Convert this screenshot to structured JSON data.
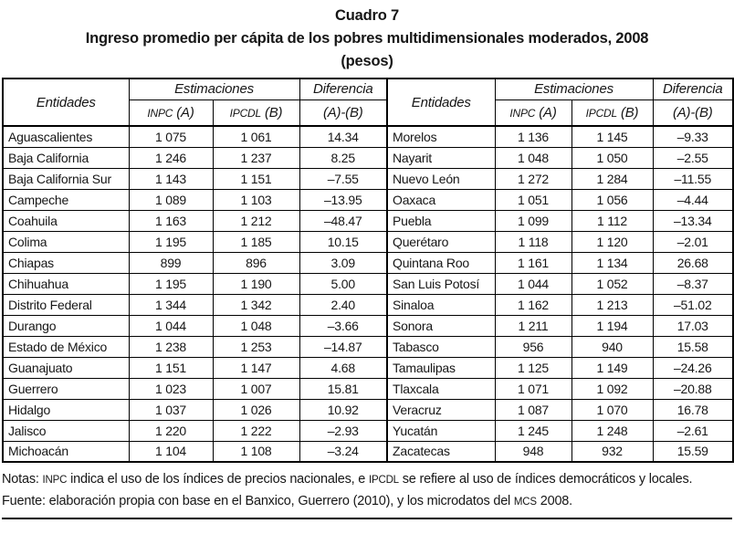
{
  "title": "Cuadro 7",
  "subtitle": "Ingreso promedio per cápita de los pobres multidimensionales moderados, 2008",
  "units": "(pesos)",
  "table": {
    "header": {
      "entidades": "Entidades",
      "estimaciones": "Estimaciones",
      "diferencia": "Diferencia",
      "inpc_abbr": "INPC",
      "inpc_suffix": "(A)",
      "ipcdl_abbr": "IPCDL",
      "ipcdl_suffix": "(B)",
      "dif_formula": "(A)-(B)"
    },
    "rows_left": [
      {
        "name": "Aguascalientes",
        "inpc": "1 075",
        "ipcdl": "1 061",
        "dif": "14.34"
      },
      {
        "name": "Baja California",
        "inpc": "1 246",
        "ipcdl": "1 237",
        "dif": "8.25"
      },
      {
        "name": "Baja California Sur",
        "inpc": "1 143",
        "ipcdl": "1 151",
        "dif": "–7.55"
      },
      {
        "name": "Campeche",
        "inpc": "1 089",
        "ipcdl": "1 103",
        "dif": "–13.95"
      },
      {
        "name": "Coahuila",
        "inpc": "1 163",
        "ipcdl": "1 212",
        "dif": "–48.47"
      },
      {
        "name": "Colima",
        "inpc": "1 195",
        "ipcdl": "1 185",
        "dif": "10.15"
      },
      {
        "name": "Chiapas",
        "inpc": "899",
        "ipcdl": "896",
        "dif": "3.09"
      },
      {
        "name": "Chihuahua",
        "inpc": "1 195",
        "ipcdl": "1 190",
        "dif": "5.00"
      },
      {
        "name": "Distrito Federal",
        "inpc": "1 344",
        "ipcdl": "1 342",
        "dif": "2.40"
      },
      {
        "name": "Durango",
        "inpc": "1 044",
        "ipcdl": "1 048",
        "dif": "–3.66"
      },
      {
        "name": "Estado de México",
        "inpc": "1 238",
        "ipcdl": "1 253",
        "dif": "–14.87"
      },
      {
        "name": "Guanajuato",
        "inpc": "1 151",
        "ipcdl": "1 147",
        "dif": "4.68"
      },
      {
        "name": "Guerrero",
        "inpc": "1 023",
        "ipcdl": "1 007",
        "dif": "15.81"
      },
      {
        "name": "Hidalgo",
        "inpc": "1 037",
        "ipcdl": "1 026",
        "dif": "10.92"
      },
      {
        "name": "Jalisco",
        "inpc": "1 220",
        "ipcdl": "1 222",
        "dif": "–2.93"
      },
      {
        "name": "Michoacán",
        "inpc": "1 104",
        "ipcdl": "1 108",
        "dif": "–3.24"
      }
    ],
    "rows_right": [
      {
        "name": "Morelos",
        "inpc": "1 136",
        "ipcdl": "1 145",
        "dif": "–9.33"
      },
      {
        "name": "Nayarit",
        "inpc": "1 048",
        "ipcdl": "1 050",
        "dif": "–2.55"
      },
      {
        "name": "Nuevo León",
        "inpc": "1 272",
        "ipcdl": "1 284",
        "dif": "–11.55"
      },
      {
        "name": "Oaxaca",
        "inpc": "1 051",
        "ipcdl": "1 056",
        "dif": "–4.44"
      },
      {
        "name": "Puebla",
        "inpc": "1 099",
        "ipcdl": "1 112",
        "dif": "–13.34"
      },
      {
        "name": "Querétaro",
        "inpc": "1 118",
        "ipcdl": "1 120",
        "dif": "–2.01"
      },
      {
        "name": "Quintana Roo",
        "inpc": "1 161",
        "ipcdl": "1 134",
        "dif": "26.68"
      },
      {
        "name": "San Luis Potosí",
        "inpc": "1 044",
        "ipcdl": "1 052",
        "dif": "–8.37"
      },
      {
        "name": "Sinaloa",
        "inpc": "1 162",
        "ipcdl": "1 213",
        "dif": "–51.02"
      },
      {
        "name": "Sonora",
        "inpc": "1 211",
        "ipcdl": "1 194",
        "dif": "17.03"
      },
      {
        "name": "Tabasco",
        "inpc": "956",
        "ipcdl": "940",
        "dif": "15.58"
      },
      {
        "name": "Tamaulipas",
        "inpc": "1 125",
        "ipcdl": "1 149",
        "dif": "–24.26"
      },
      {
        "name": "Tlaxcala",
        "inpc": "1 071",
        "ipcdl": "1 092",
        "dif": "–20.88"
      },
      {
        "name": "Veracruz",
        "inpc": "1 087",
        "ipcdl": "1 070",
        "dif": "16.78"
      },
      {
        "name": "Yucatán",
        "inpc": "1 245",
        "ipcdl": "1 248",
        "dif": "–2.61"
      },
      {
        "name": "Zacatecas",
        "inpc": "948",
        "ipcdl": "932",
        "dif": "15.59"
      }
    ]
  },
  "notes": {
    "lines": [
      {
        "name": "notes-line",
        "segments": [
          {
            "t": "Notas: "
          },
          {
            "t": "INPC",
            "sc": true
          },
          {
            "t": " indica el uso de los índices de precios nacionales, e "
          },
          {
            "t": "IPCDL",
            "sc": true
          },
          {
            "t": " se refiere al uso de índices democráticos y locales."
          }
        ]
      },
      {
        "name": "source-line",
        "segments": [
          {
            "t": "Fuente: elaboración propia con base en el Banxico, Guerrero (2010), y los microdatos del "
          },
          {
            "t": "MCS",
            "sc": true
          },
          {
            "t": " 2008."
          }
        ]
      }
    ]
  }
}
